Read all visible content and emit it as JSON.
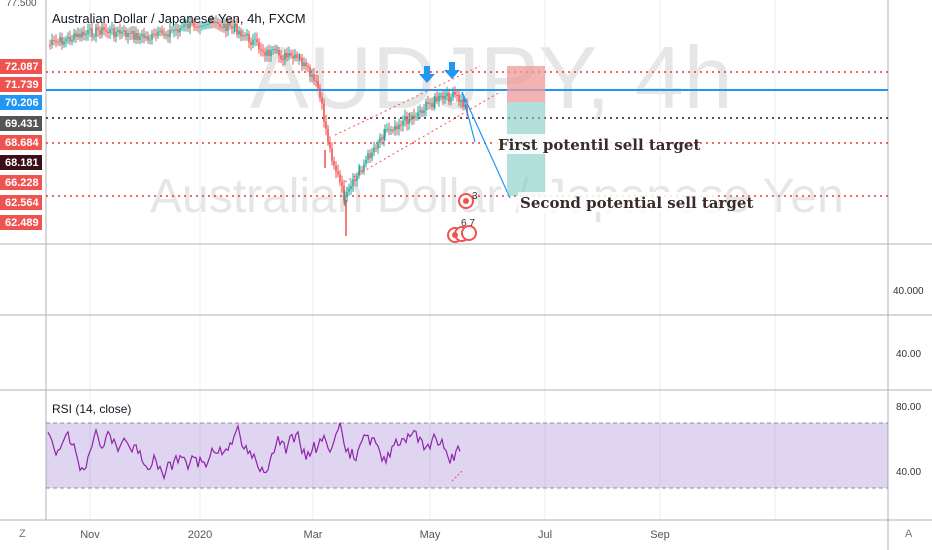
{
  "symbol": {
    "title": "Australian Dollar / Japanese Yen, 4h, FXCM",
    "watermark_main": "AUDJPY, 4h",
    "watermark_sub": "Australian Dollar / Japanese Yen"
  },
  "top_axis_value": "77.500",
  "price_labels": [
    {
      "text": "72.087",
      "color": "#ef5350"
    },
    {
      "text": "71.739",
      "color": "#ef5350"
    },
    {
      "text": "70.206",
      "color": "#2196f3"
    },
    {
      "text": "69.431",
      "color": "#555555"
    },
    {
      "text": "68.684",
      "color": "#ef5350"
    },
    {
      "text": "68.181",
      "color": "#3a0f1a"
    },
    {
      "text": "66.228",
      "color": "#ef5350"
    },
    {
      "text": "62.564",
      "color": "#ef5350"
    },
    {
      "text": "62.489",
      "color": "#ef5350"
    }
  ],
  "annotations": {
    "first_target": "First potentil sell target",
    "second_target": "Second potential sell target",
    "event_badge_1": "3",
    "event_badge_2": "6 7"
  },
  "pane2": {
    "axis_label": "40.000"
  },
  "pane3": {
    "axis_label": "40.00"
  },
  "rsi": {
    "label": "RSI (14, close)",
    "axis_high": "80.00",
    "axis_low": "40.00",
    "band_color": "#7e57c2"
  },
  "time_axis": {
    "ticks": [
      "Nov",
      "2020",
      "Mar",
      "May",
      "Jul",
      "Sep"
    ],
    "left_button": "Z",
    "right_button": "A"
  },
  "colors": {
    "up_candle": "#26a69a",
    "down_candle": "#ef5350",
    "level_line_dotted": "#e53935",
    "blue_level": "#2196f3",
    "rsi_line": "#8e24aa"
  }
}
